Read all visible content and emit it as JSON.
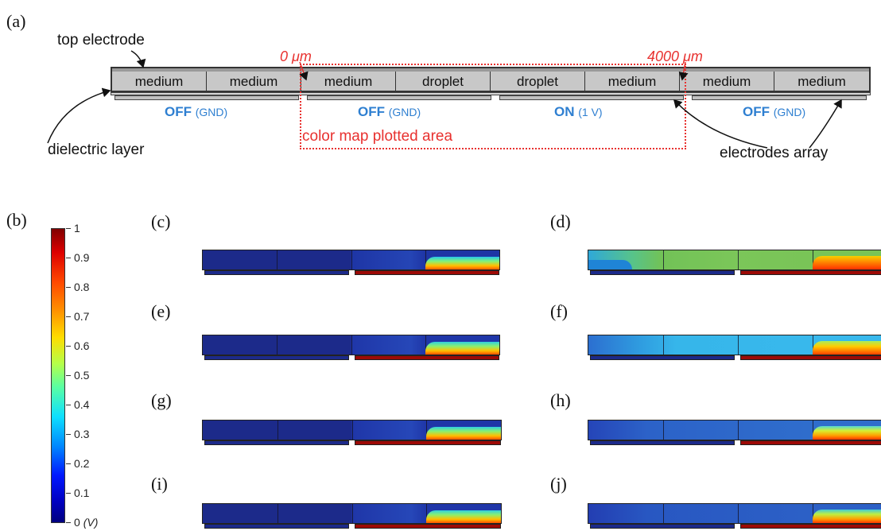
{
  "panel_a": {
    "label": "(a)",
    "top_electrode_label": "top electrode",
    "dielectric_label": "dielectric layer",
    "electrodes_array_label": "electrodes array",
    "plotted_area_label": "color map plotted area",
    "range_start": "0 μm",
    "range_end": "4000 μm",
    "cells": [
      "medium",
      "medium",
      "medium",
      "droplet",
      "droplet",
      "medium",
      "medium",
      "medium"
    ],
    "electrodes": [
      {
        "state": "OFF",
        "note": "(GND)"
      },
      {
        "state": "OFF",
        "note": "(GND)"
      },
      {
        "state": "ON",
        "note": "(1 V)"
      },
      {
        "state": "OFF",
        "note": "(GND)"
      }
    ]
  },
  "panel_b": {
    "label": "(b)",
    "colorbar_ticks": [
      "1",
      "0.9",
      "0.8",
      "0.7",
      "0.6",
      "0.5",
      "0.4",
      "0.3",
      "0.2",
      "0.1",
      "0"
    ],
    "unit": "(V)"
  },
  "map_panels": [
    {
      "label": "(c)"
    },
    {
      "label": "(d)"
    },
    {
      "label": "(e)"
    },
    {
      "label": "(f)"
    },
    {
      "label": "(g)"
    },
    {
      "label": "(h)"
    },
    {
      "label": "(i)"
    },
    {
      "label": "(j)"
    }
  ],
  "colors": {
    "accent_blue": "#2e7fd1",
    "annotation_red": "#e8312f",
    "cell_gray": "#c8c8c8"
  }
}
